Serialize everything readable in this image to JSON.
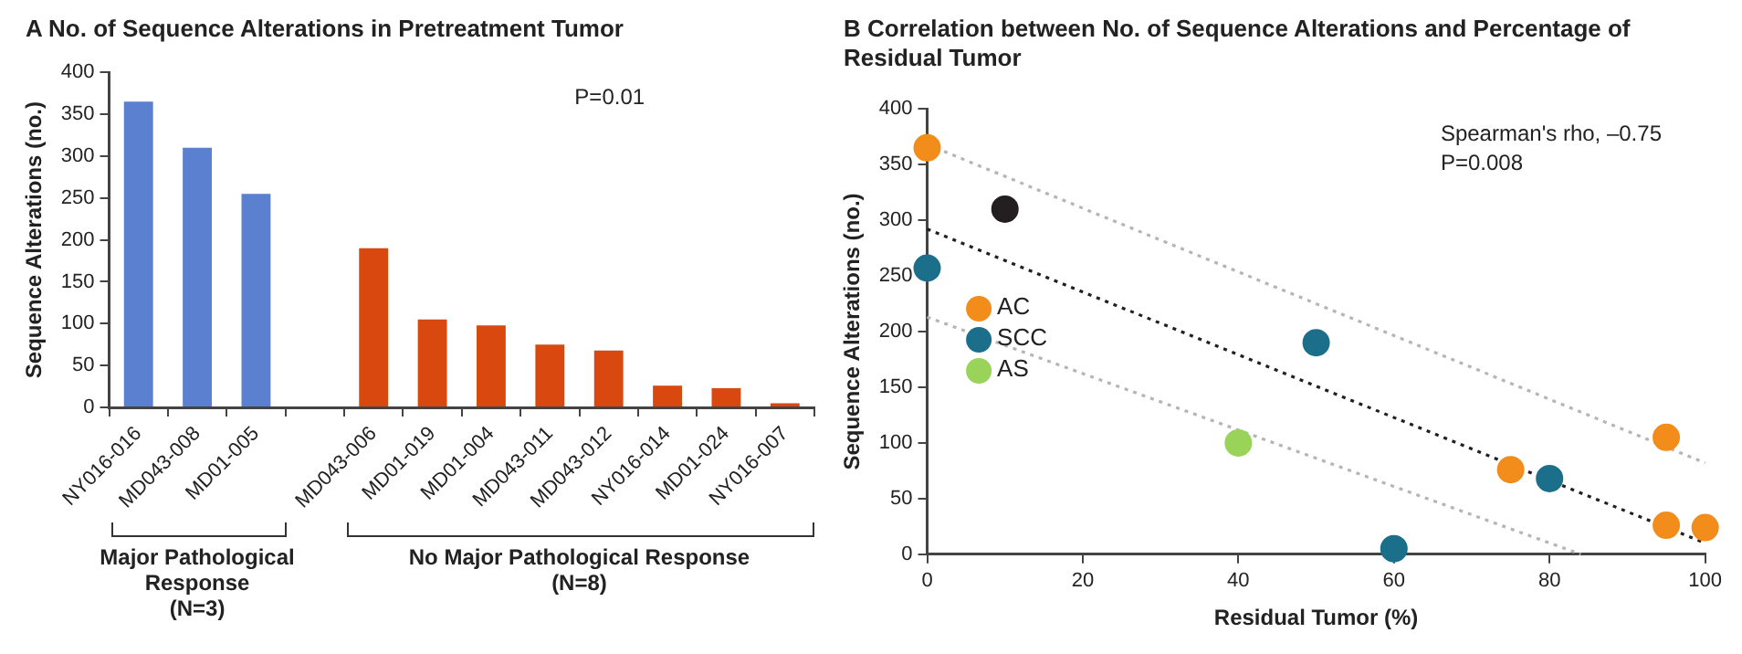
{
  "chart_data": [
    {
      "type": "bar",
      "title": "A No. of Sequence Alterations in Pretreatment Tumor",
      "ylabel": "Sequence Alterations (no.)",
      "categories": [
        "NY016-016",
        "MD043-008",
        "MD01-005",
        null,
        "MD043-006",
        "MD01-019",
        "MD01-004",
        "MD043-011",
        "MD043-012",
        "NY016-014",
        "MD01-024",
        "NY016-007"
      ],
      "values": [
        365,
        310,
        255,
        null,
        190,
        105,
        98,
        75,
        68,
        26,
        23,
        5
      ],
      "colors": [
        "#5b80cf",
        "#5b80cf",
        "#5b80cf",
        "#d9480f",
        "#d9480f",
        "#d9480f",
        "#d9480f",
        "#d9480f",
        "#d9480f",
        "#d9480f",
        "#d9480f",
        "#d9480f"
      ],
      "ylim": [
        0,
        400
      ],
      "yticks": [
        0,
        50,
        100,
        150,
        200,
        250,
        300,
        350,
        400
      ],
      "grid": false,
      "annotations": [
        "P=0.01",
        "Major Pathological\nResponse\n(N=3)",
        "No Major Pathological Response\n(N=8)"
      ]
    },
    {
      "type": "scatter",
      "title": "B Correlation between No. of Sequence Alterations and Percentage of Residual Tumor",
      "xlabel": "Residual Tumor (%)",
      "ylabel": "Sequence Alterations (no.)",
      "series": [
        {
          "name": "AC",
          "color": "#f28c1a",
          "x": [
            0,
            75,
            95,
            95,
            100
          ],
          "values": [
            365,
            76,
            105,
            26,
            24
          ]
        },
        {
          "name": "SCC",
          "color": "#1b6f8a",
          "x": [
            0,
            50,
            80,
            60
          ],
          "values": [
            257,
            190,
            68,
            5
          ]
        },
        {
          "name": "AS",
          "color": "#99d35a",
          "x": [
            40
          ],
          "values": [
            100
          ]
        },
        {
          "color": "#231f20",
          "x": [
            10
          ],
          "values": [
            310
          ]
        },
        {
          "type": "line",
          "color": "#231f20",
          "line_style": "dotted",
          "marker": "none",
          "x": [
            0,
            100
          ],
          "values": [
            292,
            10
          ]
        },
        {
          "type": "line",
          "color": "#b5b5b5",
          "line_style": "dotted",
          "marker": "none",
          "x": [
            0,
            100
          ],
          "values": [
            368,
            82
          ]
        },
        {
          "type": "line",
          "color": "#b5b5b5",
          "line_style": "dotted",
          "marker": "none",
          "x": [
            0,
            84
          ],
          "values": [
            213,
            0
          ]
        }
      ],
      "xlim": [
        0,
        100
      ],
      "xticks": [
        0,
        20,
        40,
        60,
        80,
        100
      ],
      "ylim": [
        0,
        400
      ],
      "yticks": [
        0,
        50,
        100,
        150,
        200,
        250,
        300,
        350,
        400
      ],
      "grid": false,
      "legend": "left",
      "marker": "circle",
      "annotations": [
        "Spearman's rho, –0.75",
        "P=0.008"
      ]
    }
  ]
}
